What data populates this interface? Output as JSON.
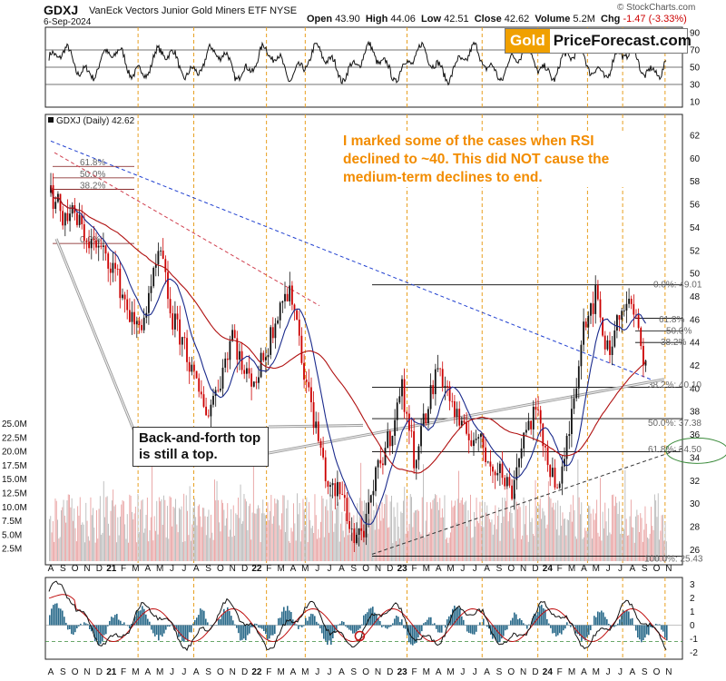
{
  "header": {
    "ticker": "GDXJ",
    "name": "VanEck Vectors Junior Gold Miners ETF",
    "exchange": "NYSE",
    "date": "6-Sep-2024",
    "open_label": "Open",
    "open": "43.90",
    "high_label": "High",
    "high": "44.06",
    "low_label": "Low",
    "low": "42.51",
    "close_label": "Close",
    "close": "42.62",
    "volume_label": "Volume",
    "volume": "5.2M",
    "chg_label": "Chg",
    "chg": "-1.47 (-3.33%)"
  },
  "copyright": "© StockCharts.com",
  "logo": {
    "gold": "Gold",
    "rest": "PriceForecast.com"
  },
  "annotation_note": "I marked some of the cases when RSI declined to ~40. This did NOT cause the medium-term declines to end.",
  "callout": "Back-and-forth top is still a top.",
  "chart_data": {
    "type": "candlestick",
    "x_axis_labels": [
      "A",
      "S",
      "O",
      "N",
      "D",
      "21",
      "F",
      "M",
      "A",
      "M",
      "J",
      "J",
      "A",
      "S",
      "O",
      "N",
      "D",
      "22",
      "F",
      "M",
      "A",
      "M",
      "J",
      "J",
      "A",
      "S",
      "O",
      "N",
      "D",
      "23",
      "F",
      "M",
      "A",
      "M",
      "J",
      "J",
      "A",
      "S",
      "O",
      "N",
      "D",
      "24",
      "F",
      "M",
      "A",
      "M",
      "J",
      "J",
      "A",
      "S",
      "O",
      "N"
    ],
    "rsi_panel": {
      "ticks": [
        90,
        70,
        50,
        30,
        10
      ],
      "guides": [
        70,
        50,
        30
      ]
    },
    "price_panel": {
      "legend": "GDXJ (Daily) 42.62",
      "y_ticks": [
        62,
        60,
        58,
        56,
        54,
        52,
        50,
        48,
        46,
        44,
        42,
        40,
        38,
        36,
        34,
        32,
        30,
        28,
        26
      ],
      "volume_ticks": [
        "25.0M",
        "22.5M",
        "20.0M",
        "17.5M",
        "15.0M",
        "12.5M",
        "10.0M",
        "7.5M",
        "5.0M",
        "2.5M"
      ],
      "fib_left": [
        "61.8%",
        "50.0%",
        "38.2%",
        "0.0%"
      ],
      "fib_right": [
        "0.0%: 49.01",
        "61.8%",
        "50.0%",
        "38.2%",
        "38.2%: 40.10",
        "50.0%: 37.38",
        "61.8%: 34.50",
        "100.0%: 25.43"
      ],
      "fib_levels": [
        49.01,
        40.1,
        37.38,
        34.5,
        25.43
      ],
      "series": [
        {
          "date": "2020-08",
          "close": 57
        },
        {
          "date": "2020-09",
          "close": 55
        },
        {
          "date": "2020-10",
          "close": 55
        },
        {
          "date": "2020-11",
          "close": 53
        },
        {
          "date": "2020-12",
          "close": 52
        },
        {
          "date": "2021-01",
          "close": 51
        },
        {
          "date": "2021-02",
          "close": 48
        },
        {
          "date": "2021-03",
          "close": 45
        },
        {
          "date": "2021-04",
          "close": 47
        },
        {
          "date": "2021-05",
          "close": 52
        },
        {
          "date": "2021-06",
          "close": 46
        },
        {
          "date": "2021-07",
          "close": 44
        },
        {
          "date": "2021-08",
          "close": 40
        },
        {
          "date": "2021-09",
          "close": 38
        },
        {
          "date": "2021-10",
          "close": 41
        },
        {
          "date": "2021-11",
          "close": 45
        },
        {
          "date": "2021-12",
          "close": 41
        },
        {
          "date": "2022-01",
          "close": 41
        },
        {
          "date": "2022-02",
          "close": 44
        },
        {
          "date": "2022-03",
          "close": 48
        },
        {
          "date": "2022-04",
          "close": 48
        },
        {
          "date": "2022-05",
          "close": 41
        },
        {
          "date": "2022-06",
          "close": 36
        },
        {
          "date": "2022-07",
          "close": 31
        },
        {
          "date": "2022-08",
          "close": 31
        },
        {
          "date": "2022-09",
          "close": 27
        },
        {
          "date": "2022-10",
          "close": 28
        },
        {
          "date": "2022-11",
          "close": 33
        },
        {
          "date": "2022-12",
          "close": 36
        },
        {
          "date": "2023-01",
          "close": 40
        },
        {
          "date": "2023-02",
          "close": 34
        },
        {
          "date": "2023-03",
          "close": 38
        },
        {
          "date": "2023-04",
          "close": 42
        },
        {
          "date": "2023-05",
          "close": 39
        },
        {
          "date": "2023-06",
          "close": 36
        },
        {
          "date": "2023-07",
          "close": 36
        },
        {
          "date": "2023-08",
          "close": 34
        },
        {
          "date": "2023-09",
          "close": 33
        },
        {
          "date": "2023-10",
          "close": 31
        },
        {
          "date": "2023-11",
          "close": 36
        },
        {
          "date": "2023-12",
          "close": 38
        },
        {
          "date": "2024-01",
          "close": 34
        },
        {
          "date": "2024-02",
          "close": 31
        },
        {
          "date": "2024-03",
          "close": 38
        },
        {
          "date": "2024-04",
          "close": 46
        },
        {
          "date": "2024-05",
          "close": 48
        },
        {
          "date": "2024-06",
          "close": 43
        },
        {
          "date": "2024-07",
          "close": 47
        },
        {
          "date": "2024-08",
          "close": 47
        },
        {
          "date": "2024-09",
          "close": 42.62
        }
      ]
    },
    "macd_panel": {
      "ticks": [
        3,
        2,
        1,
        0,
        -1,
        -2
      ]
    },
    "colors": {
      "up": "#111111",
      "down": "#cc0000",
      "ma_short": "#1a2a8c",
      "ma_long": "#b01010",
      "vline": "#e8a020",
      "fib": "#000000"
    }
  }
}
